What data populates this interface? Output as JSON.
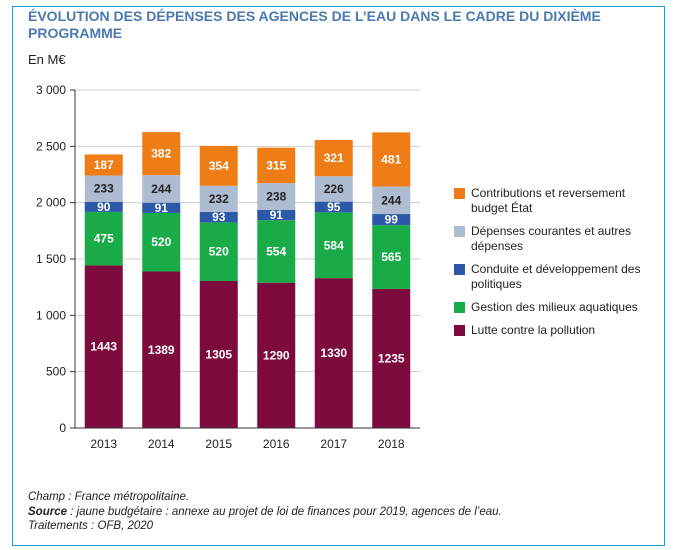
{
  "title": "ÉVOLUTION DES DÉPENSES DES AGENCES DE L’EAU DANS LE CADRE DU DIXIÈME PROGRAMME",
  "unit_label": "En M€",
  "chart_data": {
    "type": "bar",
    "stacked": true,
    "title": "ÉVOLUTION DES DÉPENSES DES AGENCES DE L’EAU DANS LE CADRE DU DIXIÈME PROGRAMME",
    "ylabel": "En M€",
    "xlabel": "",
    "ylim": [
      0,
      3000
    ],
    "yticks": [
      0,
      500,
      1000,
      1500,
      2000,
      2500,
      3000
    ],
    "ytick_labels": [
      "0",
      "500",
      "1 000",
      "1 500",
      "2 000",
      "2 500",
      "3 000"
    ],
    "grid": "horizontal",
    "legend_position": "right",
    "categories": [
      "2013",
      "2014",
      "2015",
      "2016",
      "2017",
      "2018"
    ],
    "series": [
      {
        "name": "Lutte contre la pollution",
        "color": "#7d0a3c",
        "label_color": "#ffffff",
        "values": [
          1443,
          1389,
          1305,
          1290,
          1330,
          1235
        ]
      },
      {
        "name": "Gestion des milieux aquatiques",
        "color": "#19ab48",
        "label_color": "#ffffff",
        "values": [
          475,
          520,
          520,
          554,
          584,
          565
        ]
      },
      {
        "name": "Conduite et développement des politiques",
        "color": "#2d57a7",
        "label_color": "#ffffff",
        "values": [
          90,
          91,
          93,
          91,
          95,
          99
        ]
      },
      {
        "name": "Dépenses courantes et autres dépenses",
        "color": "#aebcd2",
        "label_color": "#222222",
        "values": [
          233,
          244,
          232,
          238,
          226,
          244
        ]
      },
      {
        "name": "Contributions et reversement budget État",
        "color": "#ef7d16",
        "label_color": "#ffffff",
        "values": [
          187,
          382,
          354,
          315,
          321,
          481
        ]
      }
    ]
  },
  "legend": [
    {
      "label": "Contributions et reversement budget État",
      "color": "#ef7d16"
    },
    {
      "label": "Dépenses courantes et autres dépenses",
      "color": "#aebcd2"
    },
    {
      "label": "Conduite et développement des politiques",
      "color": "#2d57a7"
    },
    {
      "label": "Gestion des milieux aquatiques",
      "color": "#19ab48"
    },
    {
      "label": "Lutte contre la pollution",
      "color": "#7d0a3c"
    }
  ],
  "footer": {
    "champ": "Champ : France métropolitaine.",
    "source_label": "Source",
    "source_text": " : jaune budgétaire : annexe au projet de loi de finances pour 2019, agences de l’eau.",
    "traitements": "Traitements : OFB, 2020"
  }
}
